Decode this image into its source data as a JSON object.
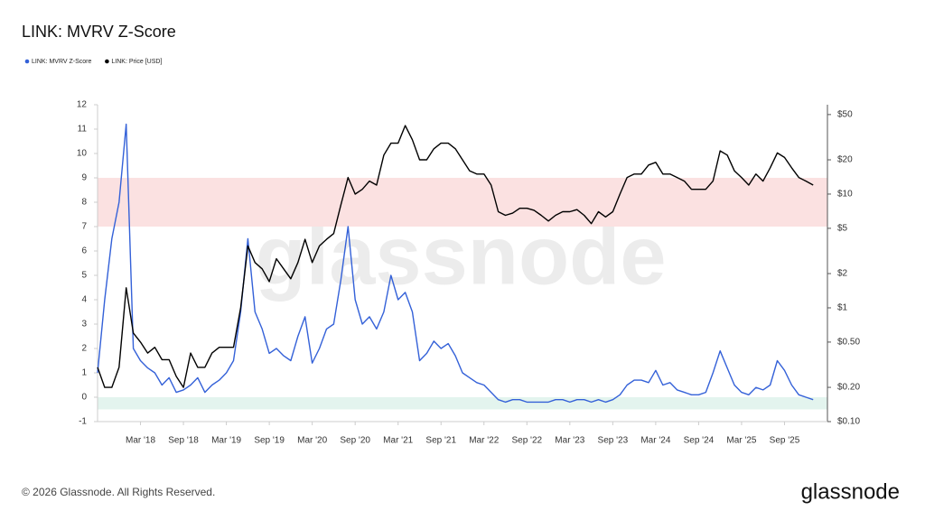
{
  "chart_data": {
    "type": "line",
    "title": "LINK: MVRV Z-Score",
    "footer": "© 2026 Glassnode. All Rights Reserved.",
    "brand": "glassnode",
    "watermark": "glassnode",
    "x": [
      "2017-09",
      "2017-10",
      "2017-11",
      "2017-12",
      "2018-01",
      "2018-02",
      "2018-03",
      "2018-04",
      "2018-05",
      "2018-06",
      "2018-07",
      "2018-08",
      "2018-09",
      "2018-10",
      "2018-11",
      "2018-12",
      "2019-01",
      "2019-02",
      "2019-03",
      "2019-04",
      "2019-05",
      "2019-06",
      "2019-07",
      "2019-08",
      "2019-09",
      "2019-10",
      "2019-11",
      "2019-12",
      "2020-01",
      "2020-02",
      "2020-03",
      "2020-04",
      "2020-05",
      "2020-06",
      "2020-07",
      "2020-08",
      "2020-09",
      "2020-10",
      "2020-11",
      "2020-12",
      "2021-01",
      "2021-02",
      "2021-03",
      "2021-04",
      "2021-05",
      "2021-06",
      "2021-07",
      "2021-08",
      "2021-09",
      "2021-10",
      "2021-11",
      "2021-12",
      "2022-01",
      "2022-02",
      "2022-03",
      "2022-04",
      "2022-05",
      "2022-06",
      "2022-07",
      "2022-08",
      "2022-09",
      "2022-10",
      "2022-11",
      "2022-12",
      "2023-01",
      "2023-02",
      "2023-03",
      "2023-04",
      "2023-05",
      "2023-06",
      "2023-07",
      "2023-08",
      "2023-09",
      "2023-10",
      "2023-11",
      "2023-12",
      "2024-01",
      "2024-02",
      "2024-03",
      "2024-04",
      "2024-05",
      "2024-06",
      "2024-07",
      "2024-08",
      "2024-09",
      "2024-10",
      "2024-11",
      "2024-12",
      "2025-01",
      "2025-02",
      "2025-03",
      "2025-04",
      "2025-05",
      "2025-06",
      "2025-07",
      "2025-08",
      "2025-09",
      "2025-10",
      "2025-11",
      "2025-12",
      "2026-01"
    ],
    "series": [
      {
        "name": "LINK: MVRV Z-Score",
        "color": "#3461d8",
        "axis": "y",
        "values": [
          1.0,
          4.0,
          6.5,
          8.0,
          11.2,
          2.0,
          1.5,
          1.2,
          1.0,
          0.5,
          0.8,
          0.2,
          0.3,
          0.5,
          0.8,
          0.2,
          0.5,
          0.7,
          1.0,
          1.5,
          3.5,
          6.5,
          3.5,
          2.8,
          1.8,
          2.0,
          1.7,
          1.5,
          2.5,
          3.3,
          1.4,
          2.0,
          2.8,
          3.0,
          4.8,
          7.0,
          4.0,
          3.0,
          3.3,
          2.8,
          3.5,
          5.0,
          4.0,
          4.3,
          3.5,
          1.5,
          1.8,
          2.3,
          2.0,
          2.2,
          1.7,
          1.0,
          0.8,
          0.6,
          0.5,
          0.2,
          -0.1,
          -0.2,
          -0.1,
          -0.1,
          -0.2,
          -0.2,
          -0.2,
          -0.2,
          -0.1,
          -0.1,
          -0.2,
          -0.1,
          -0.1,
          -0.2,
          -0.1,
          -0.2,
          -0.1,
          0.1,
          0.5,
          0.7,
          0.7,
          0.6,
          1.1,
          0.5,
          0.6,
          0.3,
          0.2,
          0.1,
          0.1,
          0.2,
          1.0,
          1.9,
          1.2,
          0.5,
          0.2,
          0.1,
          0.4,
          0.3,
          0.5,
          1.5,
          1.1,
          0.5,
          0.1,
          0.0,
          -0.1
        ]
      },
      {
        "name": "LINK: Price [USD]",
        "color": "#000000",
        "axis": "y2",
        "values": [
          0.3,
          0.2,
          0.2,
          0.3,
          1.5,
          0.6,
          0.5,
          0.4,
          0.45,
          0.35,
          0.35,
          0.25,
          0.2,
          0.4,
          0.3,
          0.3,
          0.4,
          0.45,
          0.45,
          0.45,
          1.0,
          3.5,
          2.5,
          2.2,
          1.7,
          2.7,
          2.2,
          1.8,
          2.5,
          4,
          2.5,
          3.5,
          4,
          4.5,
          8,
          14,
          10,
          11,
          13,
          12,
          22,
          28,
          28,
          40,
          30,
          20,
          20,
          25,
          28,
          28,
          25,
          20,
          16,
          15,
          15,
          12,
          7,
          6.5,
          6.8,
          7.5,
          7.5,
          7.2,
          6.5,
          5.8,
          6.5,
          7,
          7,
          7.3,
          6.5,
          5.5,
          7,
          6.3,
          7,
          10,
          14,
          15,
          15,
          18,
          19,
          15,
          15,
          14,
          13,
          11,
          11,
          11,
          13,
          24,
          22,
          16,
          14,
          12,
          15,
          13,
          17,
          23,
          21,
          17,
          14,
          13,
          12
        ]
      }
    ],
    "bands": [
      {
        "from": 7,
        "to": 9,
        "color": "#fbe1e1"
      },
      {
        "from": -0.5,
        "to": 0,
        "color": "#e3f4ee"
      }
    ],
    "xlim": [
      "2017-09",
      "2026-03"
    ],
    "xticks": [
      {
        "value": "2018-03",
        "label": "Mar '18"
      },
      {
        "value": "2018-09",
        "label": "Sep '18"
      },
      {
        "value": "2019-03",
        "label": "Mar '19"
      },
      {
        "value": "2019-09",
        "label": "Sep '19"
      },
      {
        "value": "2020-03",
        "label": "Mar '20"
      },
      {
        "value": "2020-09",
        "label": "Sep '20"
      },
      {
        "value": "2021-03",
        "label": "Mar '21"
      },
      {
        "value": "2021-09",
        "label": "Sep '21"
      },
      {
        "value": "2022-03",
        "label": "Mar '22"
      },
      {
        "value": "2022-09",
        "label": "Sep '22"
      },
      {
        "value": "2023-03",
        "label": "Mar '23"
      },
      {
        "value": "2023-09",
        "label": "Sep '23"
      },
      {
        "value": "2024-03",
        "label": "Mar '24"
      },
      {
        "value": "2024-09",
        "label": "Sep '24"
      },
      {
        "value": "2025-03",
        "label": "Mar '25"
      },
      {
        "value": "2025-09",
        "label": "Sep '25"
      }
    ],
    "ylim": [
      -1,
      12
    ],
    "yticks": [
      -1,
      0,
      1,
      2,
      3,
      4,
      5,
      6,
      7,
      8,
      9,
      10,
      11,
      12
    ],
    "y2lim": [
      0.1,
      61
    ],
    "y2scale": "log",
    "y2ticks": [
      {
        "value": 0.1,
        "label": "$0.10"
      },
      {
        "value": 0.2,
        "label": "$0.20"
      },
      {
        "value": 0.5,
        "label": "$0.50"
      },
      {
        "value": 1,
        "label": "$1"
      },
      {
        "value": 2,
        "label": "$2"
      },
      {
        "value": 5,
        "label": "$5"
      },
      {
        "value": 10,
        "label": "$10"
      },
      {
        "value": 20,
        "label": "$20"
      },
      {
        "value": 50,
        "label": "$50"
      }
    ]
  }
}
